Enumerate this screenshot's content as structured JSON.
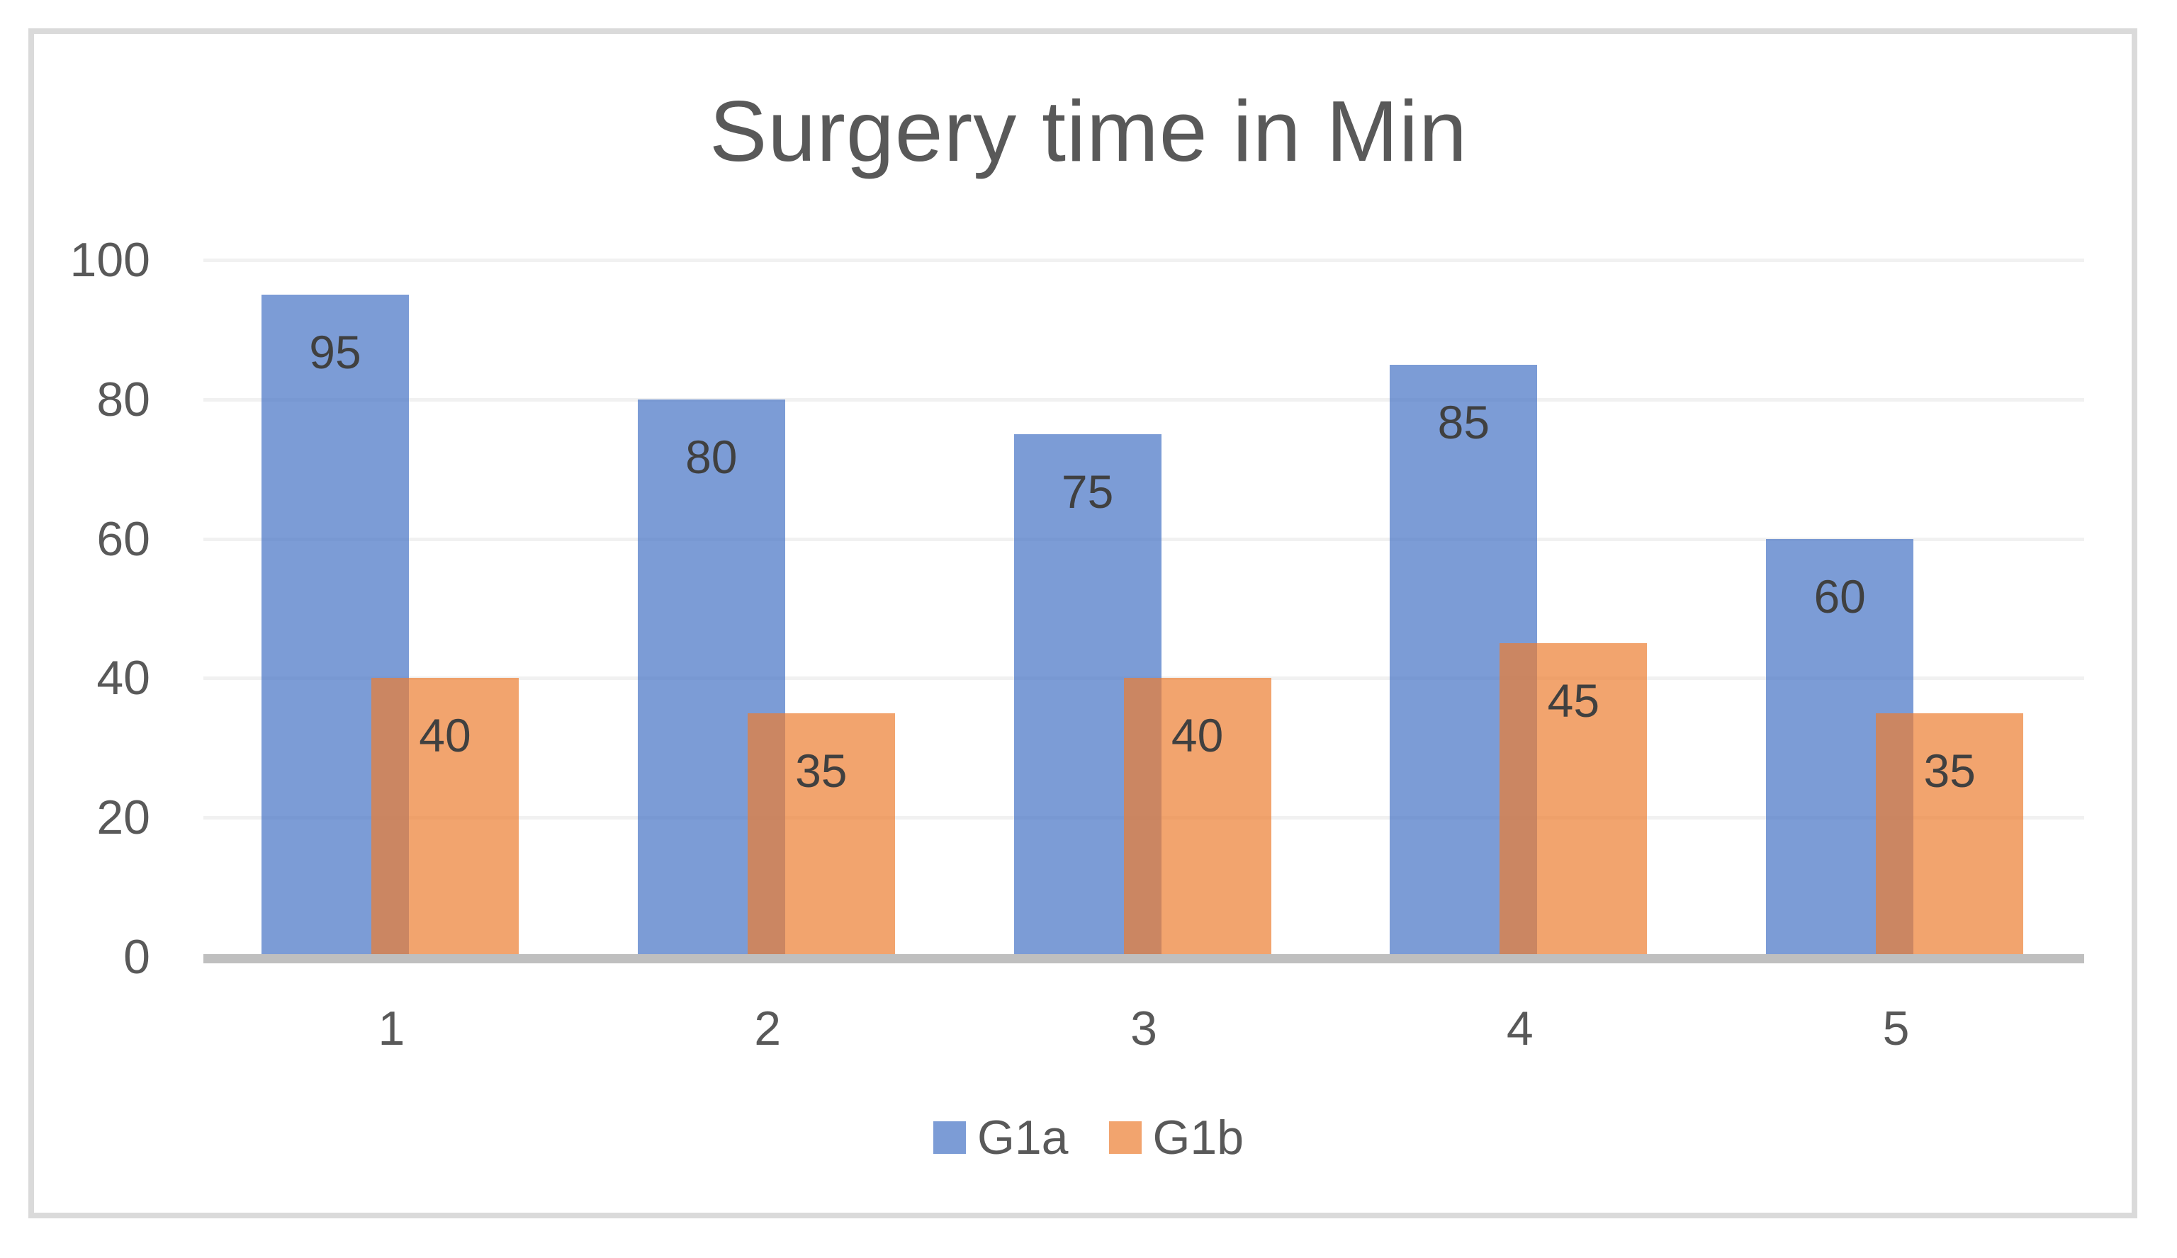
{
  "chart_data": {
    "type": "bar",
    "title": "Surgery time in Min",
    "categories": [
      "1",
      "2",
      "3",
      "4",
      "5"
    ],
    "series": [
      {
        "name": "G1a",
        "color": "#4472C4",
        "opacity": 0.7,
        "values": [
          95,
          80,
          75,
          85,
          60
        ]
      },
      {
        "name": "G1b",
        "color": "#ED7D31",
        "opacity": 0.7,
        "values": [
          40,
          35,
          40,
          45,
          35
        ]
      }
    ],
    "data_labels": {
      "G1a": [
        "95",
        "80",
        "75",
        "85",
        "60"
      ],
      "G1b": [
        "40",
        "35",
        "40",
        "45",
        "35"
      ]
    },
    "xlabel": "",
    "ylabel": "",
    "ylim": [
      0,
      100
    ],
    "yticks": [
      0,
      20,
      40,
      60,
      80,
      100
    ],
    "grid": "horizontal",
    "legend_position": "bottom",
    "data_label_position": "inside-end",
    "colors": {
      "title_text": "#595959",
      "axis_text": "#595959",
      "data_label_text": "#404040",
      "gridline": "#F1F1F1",
      "axis_baseline": "#BFBFBF",
      "frame_border": "#DADADA",
      "background": "#FFFFFF"
    }
  }
}
